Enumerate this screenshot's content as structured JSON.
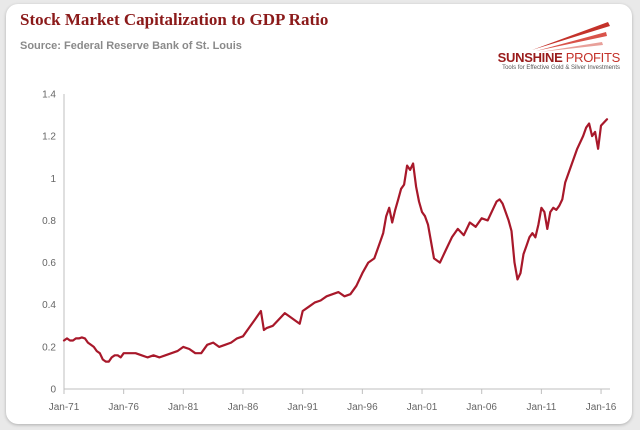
{
  "header": {
    "title": "Stock Market Capitalization to GDP Ratio",
    "subtitle": "Source: Federal Reserve Bank of St. Louis"
  },
  "logo": {
    "name_bold": "SUNSHINE",
    "name_light": "PROFITS",
    "tagline": "Tools for Effective Gold & Silver Investments"
  },
  "colors": {
    "line": "#a8182a",
    "title": "#8b1a1a",
    "axis": "#bfbfbf",
    "logo_accent": "#c4322a"
  },
  "chart_data": {
    "type": "line",
    "title": "Stock Market Capitalization to GDP Ratio",
    "xlabel": "",
    "ylabel": "",
    "ylim": [
      0,
      1.4
    ],
    "yticks": [
      0,
      0.2,
      0.4,
      0.6,
      0.8,
      1,
      1.2,
      1.4
    ],
    "ytick_labels": [
      "0",
      "0.2",
      "0.4",
      "0.6",
      "0.8",
      "1",
      "1.2",
      "1.4"
    ],
    "xlim": [
      1971.0,
      2016.75
    ],
    "xticks": [
      1971,
      1976,
      1981,
      1986,
      1991,
      1996,
      2001,
      2006,
      2011,
      2016
    ],
    "xtick_labels": [
      "Jan-71",
      "Jan-76",
      "Jan-81",
      "Jan-86",
      "Jan-91",
      "Jan-96",
      "Jan-01",
      "Jan-06",
      "Jan-11",
      "Jan-16"
    ],
    "grid": false,
    "legend": "none",
    "series": [
      {
        "x": [
          1971.0,
          1971.25,
          1971.5,
          1971.75,
          1972.0,
          1972.25,
          1972.5,
          1972.75,
          1973.0,
          1973.25,
          1973.5,
          1973.75,
          1974.0,
          1974.25,
          1974.5,
          1974.75,
          1975.0,
          1975.25,
          1975.5,
          1975.75,
          1976.0,
          1976.5,
          1977.0,
          1977.5,
          1978.0,
          1978.5,
          1979.0,
          1979.5,
          1980.0,
          1980.5,
          1981.0,
          1981.5,
          1982.0,
          1982.5,
          1983.0,
          1983.5,
          1984.0,
          1984.5,
          1985.0,
          1985.5,
          1986.0,
          1986.5,
          1987.0,
          1987.5,
          1987.75,
          1988.0,
          1988.5,
          1989.0,
          1989.5,
          1990.0,
          1990.5,
          1990.75,
          1991.0,
          1991.5,
          1992.0,
          1992.5,
          1993.0,
          1993.5,
          1994.0,
          1994.5,
          1995.0,
          1995.5,
          1996.0,
          1996.5,
          1997.0,
          1997.5,
          1997.75,
          1998.0,
          1998.25,
          1998.5,
          1998.75,
          1999.0,
          1999.25,
          1999.5,
          1999.75,
          2000.0,
          2000.25,
          2000.5,
          2000.75,
          2001.0,
          2001.25,
          2001.5,
          2001.75,
          2002.0,
          2002.5,
          2002.75,
          2003.0,
          2003.5,
          2004.0,
          2004.5,
          2005.0,
          2005.5,
          2006.0,
          2006.5,
          2007.0,
          2007.25,
          2007.5,
          2007.75,
          2008.0,
          2008.25,
          2008.5,
          2008.75,
          2009.0,
          2009.25,
          2009.5,
          2009.75,
          2010.0,
          2010.25,
          2010.5,
          2010.75,
          2011.0,
          2011.25,
          2011.5,
          2011.75,
          2012.0,
          2012.25,
          2012.5,
          2012.75,
          2013.0,
          2013.5,
          2014.0,
          2014.5,
          2014.75,
          2015.0,
          2015.25,
          2015.5,
          2015.75,
          2016.0,
          2016.5
        ],
        "values": [
          0.23,
          0.24,
          0.23,
          0.23,
          0.24,
          0.24,
          0.245,
          0.24,
          0.22,
          0.21,
          0.2,
          0.18,
          0.17,
          0.14,
          0.13,
          0.13,
          0.15,
          0.16,
          0.16,
          0.15,
          0.17,
          0.17,
          0.17,
          0.16,
          0.15,
          0.16,
          0.15,
          0.16,
          0.17,
          0.18,
          0.2,
          0.19,
          0.17,
          0.17,
          0.21,
          0.22,
          0.2,
          0.21,
          0.22,
          0.24,
          0.25,
          0.29,
          0.33,
          0.37,
          0.28,
          0.29,
          0.3,
          0.33,
          0.36,
          0.34,
          0.32,
          0.31,
          0.37,
          0.39,
          0.41,
          0.42,
          0.44,
          0.45,
          0.46,
          0.44,
          0.45,
          0.49,
          0.55,
          0.6,
          0.62,
          0.7,
          0.74,
          0.82,
          0.86,
          0.79,
          0.85,
          0.9,
          0.95,
          0.97,
          1.06,
          1.04,
          1.07,
          0.96,
          0.89,
          0.84,
          0.82,
          0.78,
          0.7,
          0.62,
          0.6,
          0.63,
          0.66,
          0.72,
          0.76,
          0.73,
          0.79,
          0.77,
          0.81,
          0.8,
          0.86,
          0.89,
          0.9,
          0.88,
          0.84,
          0.8,
          0.75,
          0.6,
          0.52,
          0.55,
          0.64,
          0.68,
          0.72,
          0.74,
          0.72,
          0.78,
          0.86,
          0.84,
          0.76,
          0.84,
          0.86,
          0.85,
          0.87,
          0.9,
          0.98,
          1.06,
          1.14,
          1.2,
          1.24,
          1.26,
          1.2,
          1.22,
          1.14,
          1.25,
          1.28
        ]
      }
    ]
  }
}
